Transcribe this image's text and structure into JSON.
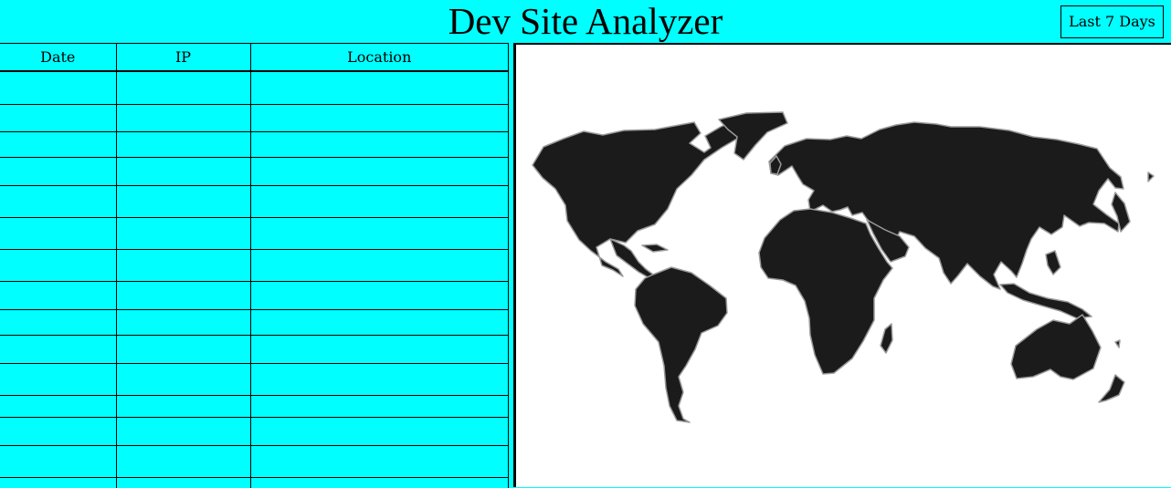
{
  "header": {
    "title": "Dev Site Analyzer",
    "range_button": "Last 7 Days"
  },
  "table": {
    "columns": [
      "Date",
      "IP",
      "Location"
    ],
    "rows": [
      [
        "",
        "",
        ""
      ],
      [
        "",
        "",
        ""
      ],
      [
        "",
        "",
        ""
      ],
      [
        "",
        "",
        ""
      ],
      [
        "",
        "",
        ""
      ],
      [
        "",
        "",
        ""
      ],
      [
        "",
        "",
        ""
      ],
      [
        "",
        "",
        ""
      ],
      [
        "",
        "",
        ""
      ],
      [
        "",
        "",
        ""
      ],
      [
        "",
        "",
        ""
      ],
      [
        "",
        "",
        ""
      ],
      [
        "",
        "",
        ""
      ],
      [
        "",
        "",
        ""
      ],
      [
        "",
        "",
        ""
      ]
    ]
  },
  "map": {
    "land_color": "#1b1b1b",
    "background_color": "#ffffff",
    "accent_color": "#00ffff"
  }
}
